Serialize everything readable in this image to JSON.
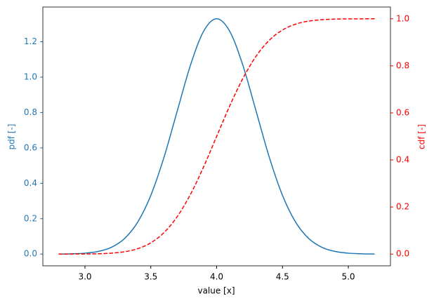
{
  "chart_data": {
    "type": "line",
    "xlabel": "value [x]",
    "ylabel": "pdf [-]",
    "y2label": "cdf [-]",
    "x": [
      2.8,
      2.9,
      3.0,
      3.1,
      3.2,
      3.3,
      3.4,
      3.5,
      3.6,
      3.7,
      3.8,
      3.9,
      4.0,
      4.1,
      4.2,
      4.3,
      4.4,
      4.5,
      4.6,
      4.7,
      4.8,
      4.9,
      5.0,
      5.1,
      5.2
    ],
    "series": [
      {
        "color": "#1f77b4",
        "style": "solid",
        "axis": "y",
        "values": [
          0.0004,
          0.0016,
          0.0051,
          0.0148,
          0.038,
          0.0874,
          0.18,
          0.3317,
          0.5467,
          0.8066,
          1.0648,
          1.258,
          1.3298,
          1.258,
          1.0648,
          0.8066,
          0.5467,
          0.3317,
          0.18,
          0.0874,
          0.038,
          0.0148,
          0.0051,
          0.0016,
          0.0004
        ]
      },
      {
        "color": "#ff0000",
        "style": "dashed",
        "axis": "y2",
        "values": [
          3e-05,
          0.00012,
          0.00043,
          0.00135,
          0.00383,
          0.00982,
          0.02275,
          0.04779,
          0.09121,
          0.15866,
          0.25249,
          0.36944,
          0.5,
          0.63056,
          0.74751,
          0.84134,
          0.90879,
          0.95221,
          0.97725,
          0.99018,
          0.99617,
          0.99865,
          0.99957,
          0.99988,
          0.99997
        ]
      }
    ],
    "xlim": [
      2.68,
      5.32
    ],
    "xticks": [
      {
        "value": 3,
        "label": "3.0"
      },
      3.5,
      {
        "value": 4,
        "label": "4.0"
      },
      4.5,
      {
        "value": 5,
        "label": "5.0"
      }
    ],
    "ylim": [
      -0.0665,
      1.3963
    ],
    "yticks": [
      {
        "value": 0,
        "label": "0.0"
      },
      0.2,
      0.4,
      0.6,
      0.8,
      {
        "value": 1,
        "label": "1.0"
      },
      1.2
    ],
    "y2lim": [
      -0.05,
      1.05
    ],
    "y2ticks": [
      {
        "value": 0,
        "label": "0.0"
      },
      0.2,
      0.4,
      0.6,
      0.8,
      {
        "value": 1,
        "label": "1.0"
      }
    ],
    "ycolor": "#1f77b4",
    "y2color": "#ff0000"
  }
}
